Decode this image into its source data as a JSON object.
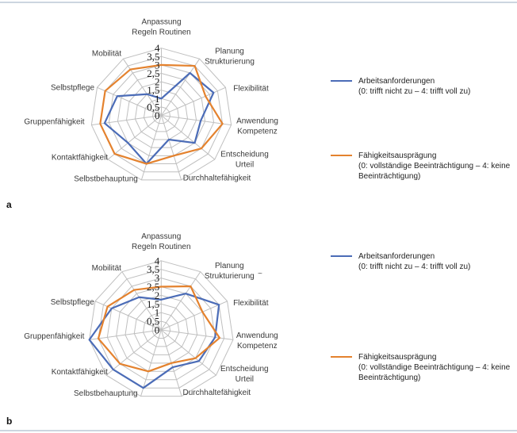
{
  "figure": {
    "background": "#ffffff",
    "edge_rule_color": "#ccd6e0",
    "grid_color": "#bfbfbf"
  },
  "panels": [
    {
      "letter": "a"
    },
    {
      "letter": "b"
    }
  ],
  "legend": {
    "items": [
      {
        "label": "Arbeitsanforderungen",
        "scale_note": "(0: trifft nicht zu – 4: trifft voll zu)",
        "color": "#4B6CB7"
      },
      {
        "label": "Fähigkeitsausprägung",
        "scale_note": "(0: vollständige Beeinträchtigung – 4: keine Beeinträchtigung)",
        "color": "#E4822E"
      }
    ]
  },
  "stray_mark": "~",
  "chart_data": [
    {
      "type": "radar",
      "panel": "a",
      "max": 4,
      "tick_values": [
        4,
        3.5,
        3,
        2.5,
        2,
        1.5,
        1,
        0.5,
        0
      ],
      "axis_ticks": [
        "4",
        "3,5",
        "3",
        "2,5",
        "2",
        "1,5",
        "1",
        "0,5",
        "0"
      ],
      "categories": [
        "Anpassung Regeln Routinen",
        "Planung Strukturierung",
        "Flexibilität",
        "Anwendung Kompetenz",
        "Entscheidung Urteil",
        "Durchhaltefähigkeit",
        "Selbstbehauptung",
        "Kontaktfähigkeit",
        "Gruppenfähigkeit",
        "Selbstpflege",
        "Mobilität"
      ],
      "label_lines": [
        [
          "Anpassung",
          "Regeln Routinen"
        ],
        [
          "Planung",
          "Strukturierung"
        ],
        [
          "Flexibilität"
        ],
        [
          "Anwendung",
          "Kompetenz"
        ],
        [
          "Entscheidung",
          "Urteil"
        ],
        [
          "Durchhaltefähigkeit"
        ],
        [
          "Selbstbehauptung"
        ],
        [
          "Kontaktfähigkeit"
        ],
        [
          "Gruppenfähigkeit"
        ],
        [
          "Selbstpflege"
        ],
        [
          "Mobilität"
        ]
      ],
      "series": [
        {
          "name": "Arbeitsanforderungen",
          "color": "#4B6CB7",
          "values": [
            1.0,
            3.0,
            3.25,
            2.25,
            2.5,
            1.5,
            3.0,
            2.5,
            3.25,
            2.75,
            1.5
          ]
        },
        {
          "name": "Fähigkeitsausprägung",
          "color": "#E4822E",
          "values": [
            3.0,
            3.5,
            2.75,
            3.5,
            3.0,
            2.5,
            3.0,
            3.5,
            3.5,
            3.5,
            3.25
          ]
        }
      ]
    },
    {
      "type": "radar",
      "panel": "b",
      "max": 4,
      "tick_values": [
        4,
        3.5,
        3,
        2.5,
        2,
        1.5,
        1,
        0.5,
        0
      ],
      "axis_ticks": [
        "4",
        "3,5",
        "3",
        "2,5",
        "2",
        "1,5",
        "1",
        "0,5",
        "0"
      ],
      "categories": [
        "Anpassung Regeln Routinen",
        "Planung Strukturierung",
        "Flexibilität",
        "Anwendung Kompetenz",
        "Entscheidung Urteil",
        "Durchhaltefähigkeit",
        "Selbstbehauptung",
        "Kontaktfähigkeit",
        "Gruppenfähigkeit",
        "Selbstpflege",
        "Mobilität"
      ],
      "label_lines": [
        [
          "Anpassung",
          "Regeln Routinen"
        ],
        [
          "Planung",
          "Strukturierung"
        ],
        [
          "Flexibilität"
        ],
        [
          "Anwendung",
          "Kompetenz"
        ],
        [
          "Entscheidung",
          "Urteil"
        ],
        [
          "Durchhaltefähigkeit"
        ],
        [
          "Selbstbehauptung"
        ],
        [
          "Kontaktfähigkeit"
        ],
        [
          "Gruppenfähigkeit"
        ],
        [
          "Selbstpflege"
        ],
        [
          "Mobilität"
        ]
      ],
      "series": [
        {
          "name": "Arbeitsanforderungen",
          "color": "#4B6CB7",
          "values": [
            1.75,
            2.5,
            3.5,
            3.0,
            2.75,
            2.25,
            3.5,
            3.5,
            4.0,
            3.0,
            2.25
          ]
        },
        {
          "name": "Fähigkeitsausprägung",
          "color": "#E4822E",
          "values": [
            2.5,
            3.0,
            2.5,
            3.25,
            2.5,
            2.0,
            2.5,
            3.0,
            3.5,
            3.25,
            2.75
          ]
        }
      ]
    }
  ]
}
